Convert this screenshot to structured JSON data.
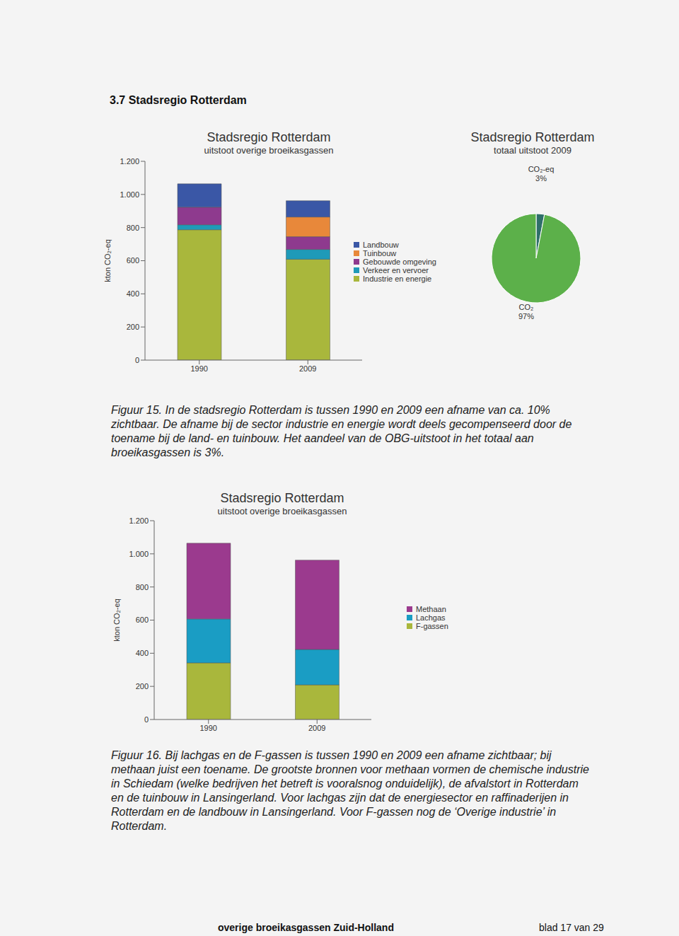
{
  "heading": "3.7 Stadsregio Rotterdam",
  "chart_data": [
    {
      "type": "bar",
      "stacked": true,
      "title": "Stadsregio Rotterdam",
      "subtitle": "uitstoot overige broeikasgassen",
      "y_label": "kton CO₂-eq",
      "categories": [
        "1990",
        "2009"
      ],
      "series": [
        {
          "name": "Industrie en energie",
          "color": "#a9b73c",
          "values": [
            787,
            609
          ]
        },
        {
          "name": "Verkeer en vervoer",
          "color": "#1f9ab8",
          "values": [
            30,
            59
          ]
        },
        {
          "name": "Gebouwde omgeving",
          "color": "#8e3a8e",
          "values": [
            106,
            77
          ]
        },
        {
          "name": "Tuinbouw",
          "color": "#e8883a",
          "values": [
            0,
            119
          ]
        },
        {
          "name": "Landbouw",
          "color": "#3a57a6",
          "values": [
            141,
            98
          ]
        }
      ],
      "ylim": [
        0,
        1200
      ],
      "yticks": [
        0,
        200,
        400,
        600,
        800,
        {
          "value": 1000,
          "label": "1.000"
        },
        {
          "value": 1200,
          "label": "1.200"
        }
      ],
      "grid": false,
      "legend": "right"
    },
    {
      "type": "pie",
      "title": "Stadsregio Rotterdam",
      "subtitle": "totaal uitstoot 2009",
      "categories": [
        "CO₂-eq",
        "CO₂"
      ],
      "values": [
        3,
        97
      ],
      "value_labels": [
        "3%",
        "97%"
      ],
      "colors": [
        "#2f6f6a",
        "#5cb04a"
      ],
      "data_labels": true
    },
    {
      "type": "bar",
      "stacked": true,
      "title": "Stadsregio Rotterdam",
      "subtitle": "uitstoot overige broeikasgassen",
      "y_label": "kton CO₂-eq",
      "categories": [
        "1990",
        "2009"
      ],
      "series": [
        {
          "name": "F-gassen",
          "color": "#a9b73c",
          "values": [
            342,
            209
          ]
        },
        {
          "name": "Lachgas",
          "color": "#1a9dc4",
          "values": [
            265,
            214
          ]
        },
        {
          "name": "Methaan",
          "color": "#9b3a8e",
          "values": [
            457,
            539
          ]
        }
      ],
      "ylim": [
        0,
        1200
      ],
      "yticks": [
        0,
        200,
        400,
        600,
        800,
        {
          "value": 1000,
          "label": "1.000"
        },
        {
          "value": 1200,
          "label": "1.200"
        }
      ],
      "grid": false,
      "legend": "right"
    }
  ],
  "captions": [
    "Figuur 15. In de stadsregio Rotterdam is tussen 1990 en 2009 een afname van ca. 10% zichtbaar. De afname bij de sector industrie en energie wordt deels gecompenseerd door de toename bij de land- en tuinbouw. Het aandeel van de OBG-uitstoot in het totaal aan broeikasgassen is 3%.",
    "Figuur 16. Bij lachgas en de F-gassen is tussen 1990 en 2009 een afname zichtbaar; bij methaan juist een toename. De grootste bronnen voor methaan vormen de chemische industrie in Schiedam (welke bedrijven het betreft is vooralsnog onduidelijk), de afvalstort in Rotterdam en de tuinbouw in Lansingerland. Voor lachgas zijn dat de energiesector en raffinaderijen in Rotterdam en de landbouw in Lansingerland. Voor F-gassen nog de ‘Overige industrie’ in Rotterdam."
  ],
  "footer": {
    "left": "overige broeikasgassen Zuid-Holland",
    "right": "blad 17 van 29"
  }
}
